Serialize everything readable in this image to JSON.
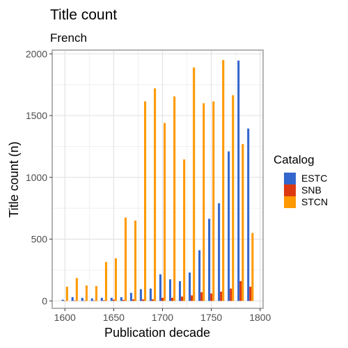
{
  "chart_data": {
    "type": "bar",
    "title": "Title count",
    "subtitle": "French",
    "xlabel": "Publication decade",
    "ylabel": "Title count (n)",
    "xlim": [
      1587,
      1803
    ],
    "ylim": [
      -60,
      2030
    ],
    "xticks": [
      1600,
      1650,
      1700,
      1750,
      1800
    ],
    "yticks": [
      0,
      500,
      1000,
      1500,
      2000
    ],
    "grid": true,
    "legend_position": "right",
    "legend_title": "Catalog",
    "x": [
      1600,
      1610,
      1620,
      1630,
      1640,
      1650,
      1660,
      1670,
      1680,
      1690,
      1700,
      1710,
      1720,
      1730,
      1740,
      1750,
      1760,
      1770,
      1780,
      1790
    ],
    "series": [
      {
        "name": "ESTC",
        "color": "#3366cc",
        "values": [
          10,
          30,
          25,
          20,
          25,
          25,
          30,
          65,
          95,
          100,
          215,
          175,
          160,
          230,
          410,
          665,
          790,
          1210,
          1945,
          1395
        ]
      },
      {
        "name": "SNB",
        "color": "#dc3912",
        "values": [
          2,
          3,
          3,
          3,
          5,
          10,
          8,
          12,
          12,
          12,
          25,
          25,
          35,
          45,
          70,
          60,
          75,
          100,
          160,
          115
        ]
      },
      {
        "name": "STCN",
        "color": "#ff9900",
        "values": [
          115,
          185,
          125,
          120,
          315,
          345,
          675,
          650,
          1615,
          1720,
          1440,
          1655,
          1145,
          1890,
          1600,
          1615,
          1950,
          1665,
          1270,
          550
        ]
      }
    ]
  }
}
